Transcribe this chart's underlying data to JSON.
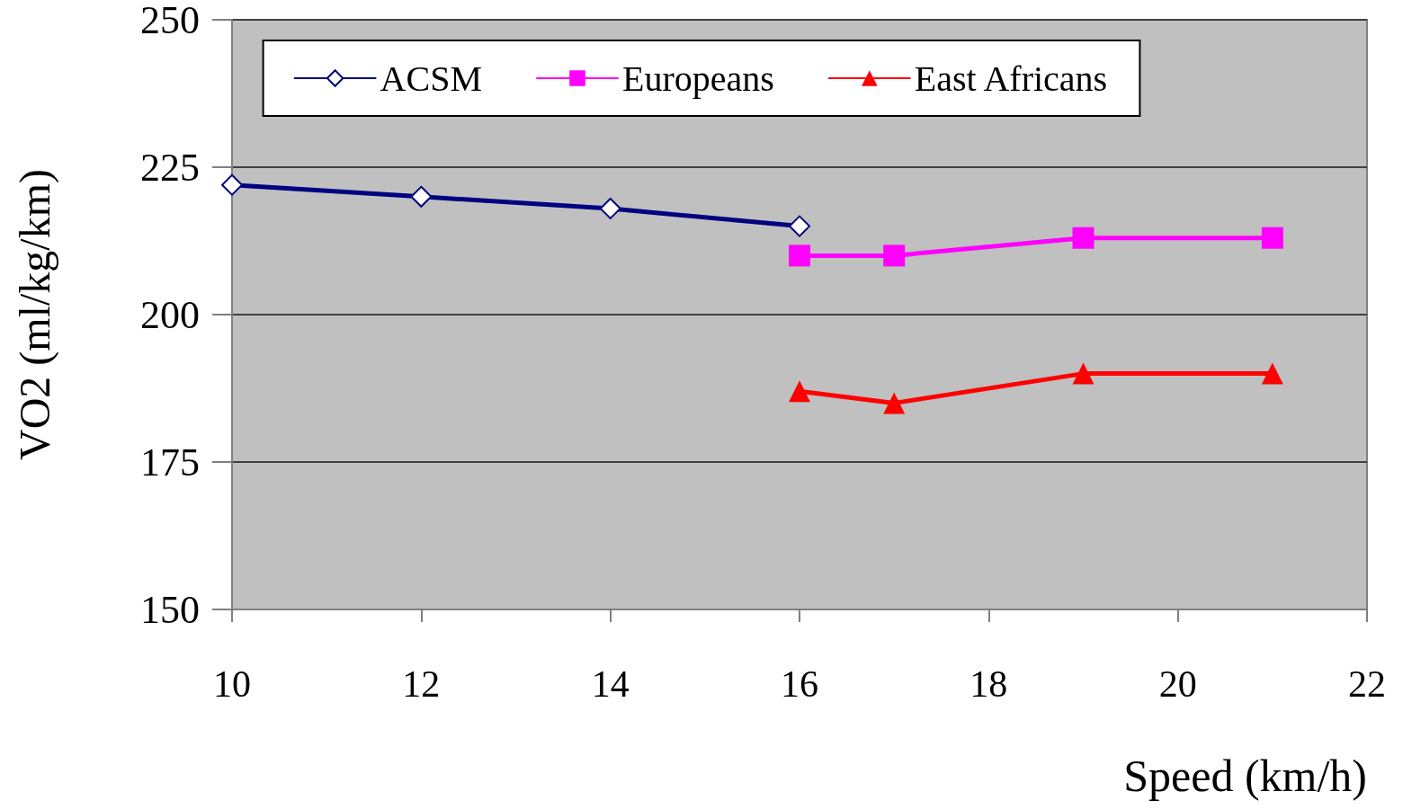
{
  "chart_data": {
    "type": "line",
    "xlabel": "Speed (km/h)",
    "ylabel": "VO2 (ml/kg/km)",
    "xlim": [
      10,
      22
    ],
    "xticks": [
      10,
      12,
      14,
      16,
      18,
      20,
      22
    ],
    "ylim": [
      150,
      250
    ],
    "yticks": [
      150,
      175,
      200,
      225,
      250
    ],
    "grid": "y",
    "legend": "top",
    "line_style": "solid",
    "series": [
      {
        "name": "ACSM",
        "color": "#000080",
        "marker": "diamond",
        "x": [
          10,
          12,
          14,
          16
        ],
        "values": [
          222,
          220,
          218,
          215
        ]
      },
      {
        "name": "Europeans",
        "color": "#ff00ff",
        "marker": "square",
        "x": [
          16,
          17,
          19,
          21
        ],
        "values": [
          210,
          210,
          213,
          213
        ]
      },
      {
        "name": "East Africans",
        "color": "#ff0000",
        "marker": "triangle",
        "x": [
          16,
          17,
          19,
          21
        ],
        "values": [
          187,
          185,
          190,
          190
        ]
      }
    ]
  }
}
